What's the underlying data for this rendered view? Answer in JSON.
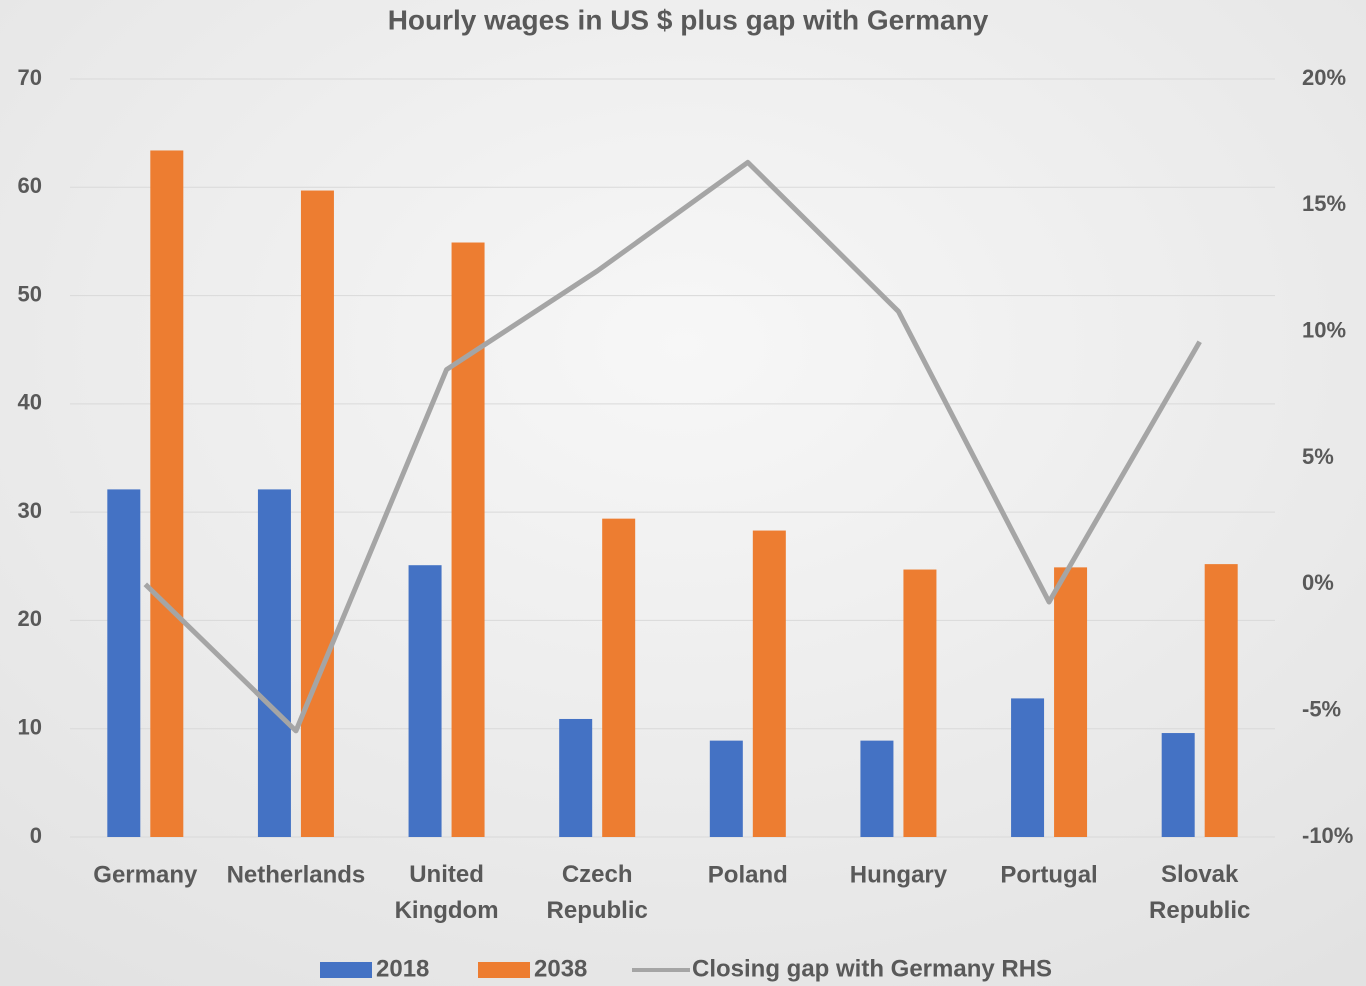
{
  "chart_data": {
    "type": "bar",
    "title": "Hourly wages in US $ plus gap with Germany",
    "categories": [
      "Germany",
      "Netherlands",
      "United Kingdom",
      "Czech Republic",
      "Poland",
      "Hungary",
      "Portugal",
      "Slovak Republic"
    ],
    "series": [
      {
        "name": "2018",
        "color": "#4472c4",
        "values": [
          32.1,
          32.1,
          25.1,
          10.9,
          8.9,
          8.9,
          12.8,
          9.6
        ]
      },
      {
        "name": "2038",
        "color": "#ed7d31",
        "values": [
          63.4,
          59.7,
          54.9,
          29.4,
          28.3,
          24.7,
          24.9,
          25.2
        ]
      },
      {
        "name": "Closing gap with Germany RHS",
        "color": "#a5a5a5",
        "type": "line",
        "axis": "y2",
        "values": [
          0,
          -5.8,
          8.5,
          12.4,
          16.7,
          10.8,
          -0.7,
          9.6
        ]
      }
    ],
    "ylim": [
      0,
      70
    ],
    "yticks": [
      0,
      10,
      20,
      30,
      40,
      50,
      60,
      70
    ],
    "y2lim": [
      -10,
      20
    ],
    "y2ticks": [
      {
        "value": -10,
        "label": "-10%"
      },
      {
        "value": -5,
        "label": "-5%"
      },
      {
        "value": 0,
        "label": "0%"
      },
      {
        "value": 5,
        "label": "5%"
      },
      {
        "value": 10,
        "label": "10%"
      },
      {
        "value": 15,
        "label": "15%"
      },
      {
        "value": 20,
        "label": "20%"
      }
    ],
    "grid": true,
    "legend": "bottom"
  }
}
